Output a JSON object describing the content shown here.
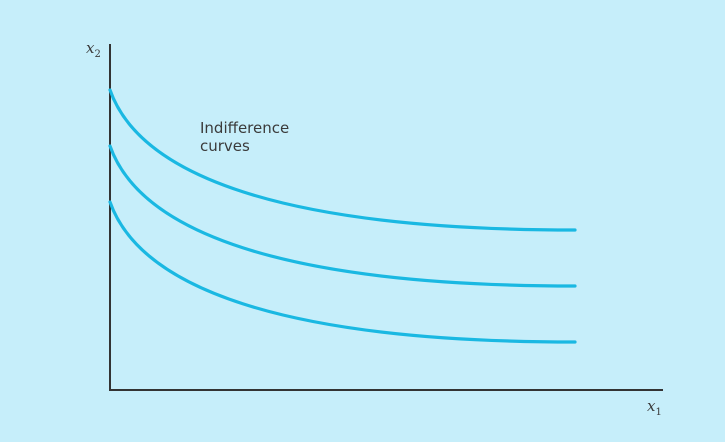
{
  "diagram": {
    "annotation_line1": "Indifference",
    "annotation_line2": "curves",
    "y_axis_var": "x",
    "y_axis_sub": "2",
    "x_axis_var": "x",
    "x_axis_sub": "1",
    "curve_count": 3,
    "colors": {
      "background": "#c6eefa",
      "curve": "#1ab8e2",
      "axis": "#333333",
      "text": "#3b3b3b"
    }
  }
}
